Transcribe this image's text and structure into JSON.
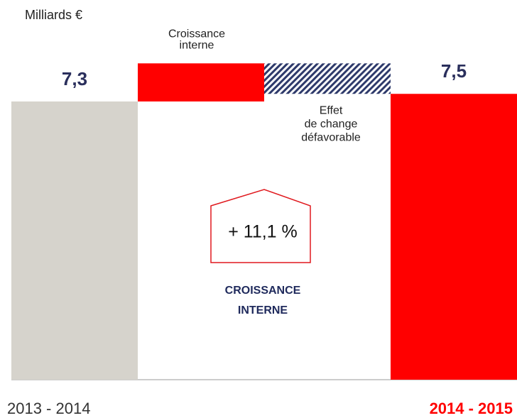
{
  "chart_data": {
    "type": "waterfall",
    "unit_label": "Milliards €",
    "categories": [
      "2013 - 2014",
      null,
      null,
      "2014 - 2015"
    ],
    "step_labels": [
      null,
      [
        "Croissance",
        "interne"
      ],
      [
        "Effet",
        "de change",
        "défavorable"
      ],
      null
    ],
    "measure": [
      "total",
      "relative",
      "relative",
      "total"
    ],
    "values": [
      7.3,
      1.0,
      -0.8,
      7.5
    ],
    "value_labels": [
      "7,3",
      null,
      null,
      "7,5"
    ],
    "colors": [
      "#d6d3cc",
      "#ff0000",
      "#2e3a6b",
      "#ff0000"
    ],
    "hatched": [
      false,
      false,
      true,
      false
    ],
    "ylim": [
      0,
      10
    ],
    "callout": {
      "value": "+ 11,1 %",
      "label": [
        "CROISSANCE",
        "INTERNE"
      ]
    }
  }
}
